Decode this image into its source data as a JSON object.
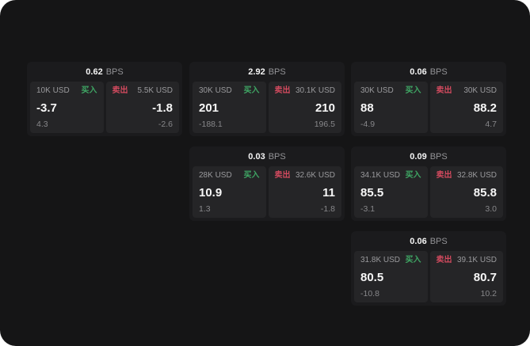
{
  "labels": {
    "buy": "买入",
    "sell": "卖出",
    "bps": "BPS"
  },
  "colors": {
    "background": "#151516",
    "card": "#1b1b1d",
    "panel": "#252527",
    "buy_green": "#3fa664",
    "sell_red": "#d14a5e"
  },
  "cards": [
    {
      "bps_value": "0.62",
      "buy": {
        "size": "10K USD",
        "value": "-3.7",
        "sub": "4.3"
      },
      "sell": {
        "size": "5.5K USD",
        "value": "-1.8",
        "sub": "-2.6"
      }
    },
    {
      "bps_value": "2.92",
      "buy": {
        "size": "30K USD",
        "value": "201",
        "sub": "-188.1"
      },
      "sell": {
        "size": "30.1K USD",
        "value": "210",
        "sub": "196.5"
      }
    },
    {
      "bps_value": "0.06",
      "buy": {
        "size": "30K USD",
        "value": "88",
        "sub": "-4.9"
      },
      "sell": {
        "size": "30K USD",
        "value": "88.2",
        "sub": "4.7"
      }
    },
    {
      "bps_value": "0.03",
      "buy": {
        "size": "28K USD",
        "value": "10.9",
        "sub": "1.3"
      },
      "sell": {
        "size": "32.6K USD",
        "value": "11",
        "sub": "-1.8"
      }
    },
    {
      "bps_value": "0.09",
      "buy": {
        "size": "34.1K USD",
        "value": "85.5",
        "sub": "-3.1"
      },
      "sell": {
        "size": "32.8K USD",
        "value": "85.8",
        "sub": "3.0"
      }
    },
    {
      "bps_value": "0.06",
      "buy": {
        "size": "31.8K USD",
        "value": "80.5",
        "sub": "-10.8"
      },
      "sell": {
        "size": "39.1K USD",
        "value": "80.7",
        "sub": "10.2"
      }
    }
  ]
}
